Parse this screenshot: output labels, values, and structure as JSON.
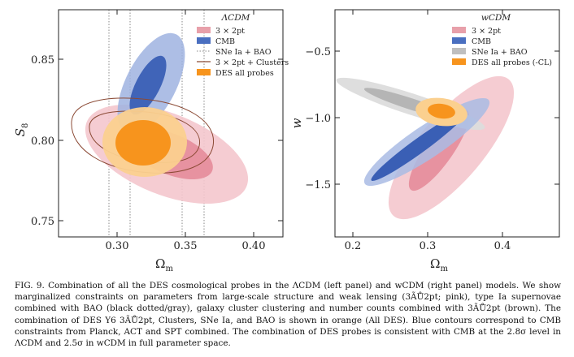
{
  "figure": {
    "left_panel": {
      "legend_title": "ΛCDM",
      "legend": [
        "3 × 2pt",
        "CMB",
        "SNe Ia + BAO",
        "3 × 2pt + Clusters",
        "DES all probes"
      ],
      "xlabel": "Ω",
      "xlabel_sub": "m",
      "ylabel": "S",
      "ylabel_sub": "8",
      "xticks": [
        "0.30",
        "0.35",
        "0.40"
      ],
      "yticks": [
        "0.85",
        "0.80",
        "0.75"
      ]
    },
    "right_panel": {
      "legend_title": "wCDM",
      "legend": [
        "3 × 2pt",
        "CMB",
        "SNe Ia + BAO",
        "DES all probes (-CL)"
      ],
      "xlabel": "Ω",
      "xlabel_sub": "m",
      "ylabel": "w",
      "xticks": [
        "0.2",
        "0.3",
        "0.4"
      ],
      "yticks": [
        "−0.5",
        "−1.0",
        "−1.5"
      ]
    },
    "colors": {
      "pink": "#e8a0aa",
      "blue": "#4a6fc0",
      "gray": "#bfbfbf",
      "brown": "#8b4a35",
      "orange": "#f7941d"
    }
  },
  "caption": "FIG. 9. Combination of all the DES cosmological probes in the ΛCDM (left panel) and wCDM (right panel) models. We show marginalized constraints on parameters from large-scale structure and weak lensing (3ÃŮ2pt; pink), type Ia supernovae combined with BAO (black dotted/gray), galaxy cluster clustering and number counts combined with 3ÃŮ2pt (brown). The combination of DES Y6 3ÃŮ2pt, Clusters, SNe Ia, and BAO is shown in orange (All DES). Blue contours correspond to CMB constraints from Planck, ACT and SPT combined. The combination of DES probes is consistent with CMB at the 2.8σ level in ΛCDM and 2.5σ in wCDM in full parameter space."
}
